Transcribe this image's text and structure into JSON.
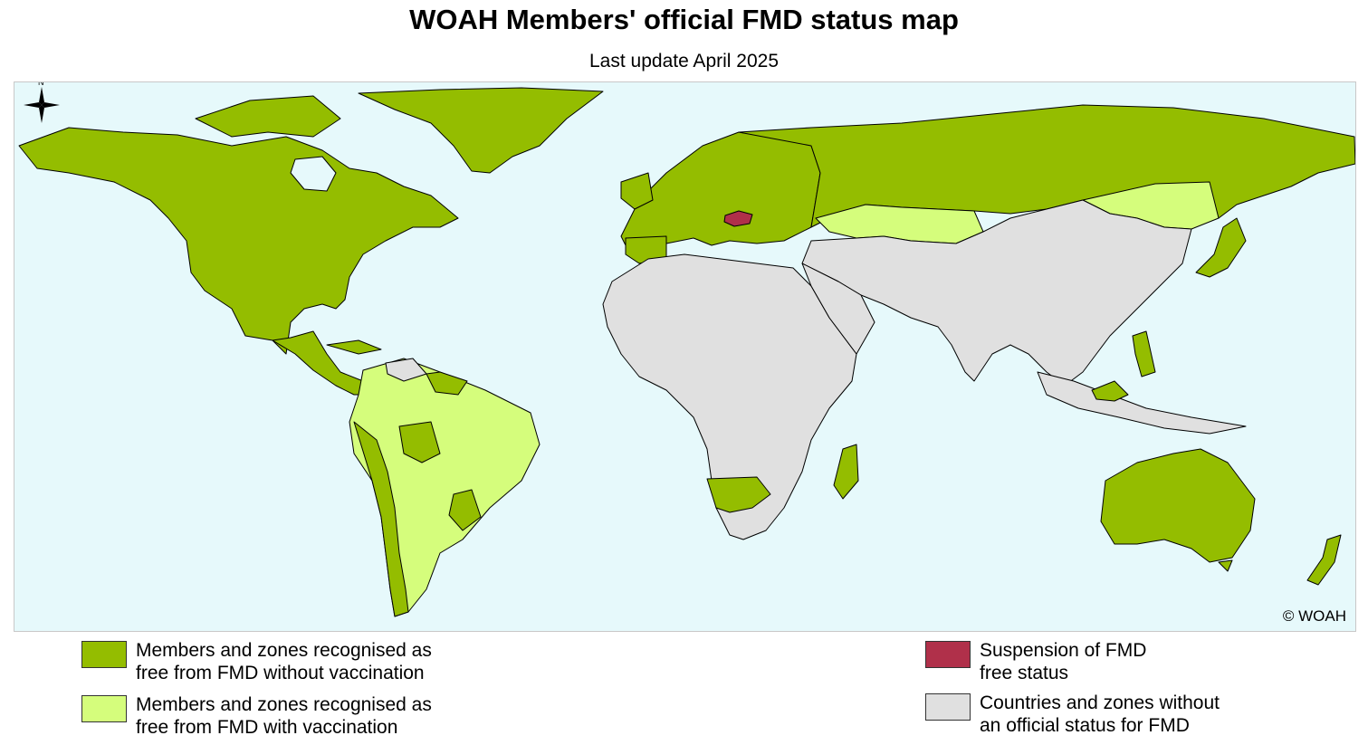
{
  "title": "WOAH Members' official FMD status map",
  "subtitle": "Last update April 2025",
  "copyright": "© WOAH",
  "colors": {
    "ocean": "#e6f9fb",
    "free_without_vaccination": "#94bd00",
    "free_with_vaccination": "#d5fd7c",
    "suspension": "#b0304a",
    "no_status": "#e0e0e0",
    "border": "#000000"
  },
  "legend": [
    {
      "label": "Members and zones recognised as\nfree from FMD without vaccination",
      "color": "#94bd00"
    },
    {
      "label": "Members and zones recognised as\nfree from FMD with vaccination",
      "color": "#d5fd7c"
    },
    {
      "label": "Suspension of FMD\nfree status",
      "color": "#b0304a"
    },
    {
      "label": "Countries and zones without\nan official status for FMD",
      "color": "#e0e0e0"
    }
  ],
  "compass": {
    "label": "N"
  }
}
